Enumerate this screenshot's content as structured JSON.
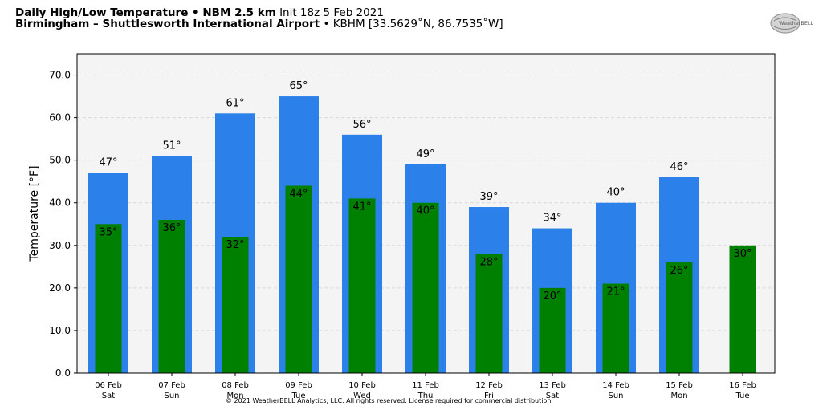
{
  "header": {
    "line1_bold": "Daily High/Low Temperature • NBM 2.5 km",
    "line1_normal": "Init 18z 5 Feb 2021",
    "line2_bold": "Birmingham – Shuttlesworth International Airport",
    "line2_normal": "• KBHM [33.5629˚N, 86.7535˚W]"
  },
  "logo": {
    "text": "WeatherBELL"
  },
  "footer": "© 2021 WeatherBELL Analytics, LLC. All rights reserved. License required for commercial distribution.",
  "colors": {
    "high": "#2b80ea",
    "low": "#008000",
    "plot_bg": "#f4f4f4",
    "grid": "#d8d8d8"
  },
  "chart_data": {
    "type": "bar",
    "ylabel": "Temperature [°F]",
    "ylim": [
      0,
      75
    ],
    "yticks": [
      "0.0",
      "10.0",
      "20.0",
      "30.0",
      "40.0",
      "50.0",
      "60.0",
      "70.0"
    ],
    "grid": true,
    "categories": [
      "06 Feb",
      "07 Feb",
      "08 Feb",
      "09 Feb",
      "10 Feb",
      "11 Feb",
      "12 Feb",
      "13 Feb",
      "14 Feb",
      "15 Feb",
      "16 Feb"
    ],
    "weekdays": [
      "Sat",
      "Sun",
      "Mon",
      "Tue",
      "Wed",
      "Thu",
      "Fri",
      "Sat",
      "Sun",
      "Mon",
      "Tue"
    ],
    "series": [
      {
        "values": [
          47,
          51,
          61,
          65,
          56,
          49,
          39,
          34,
          40,
          46,
          null
        ],
        "labels": [
          "47°",
          "51°",
          "61°",
          "65°",
          "56°",
          "49°",
          "39°",
          "34°",
          "40°",
          "46°",
          ""
        ]
      },
      {
        "values": [
          35,
          36,
          32,
          44,
          41,
          40,
          28,
          20,
          21,
          26,
          30
        ],
        "labels": [
          "35°",
          "36°",
          "32°",
          "44°",
          "41°",
          "40°",
          "28°",
          "20°",
          "21°",
          "26°",
          "30°"
        ]
      }
    ]
  }
}
